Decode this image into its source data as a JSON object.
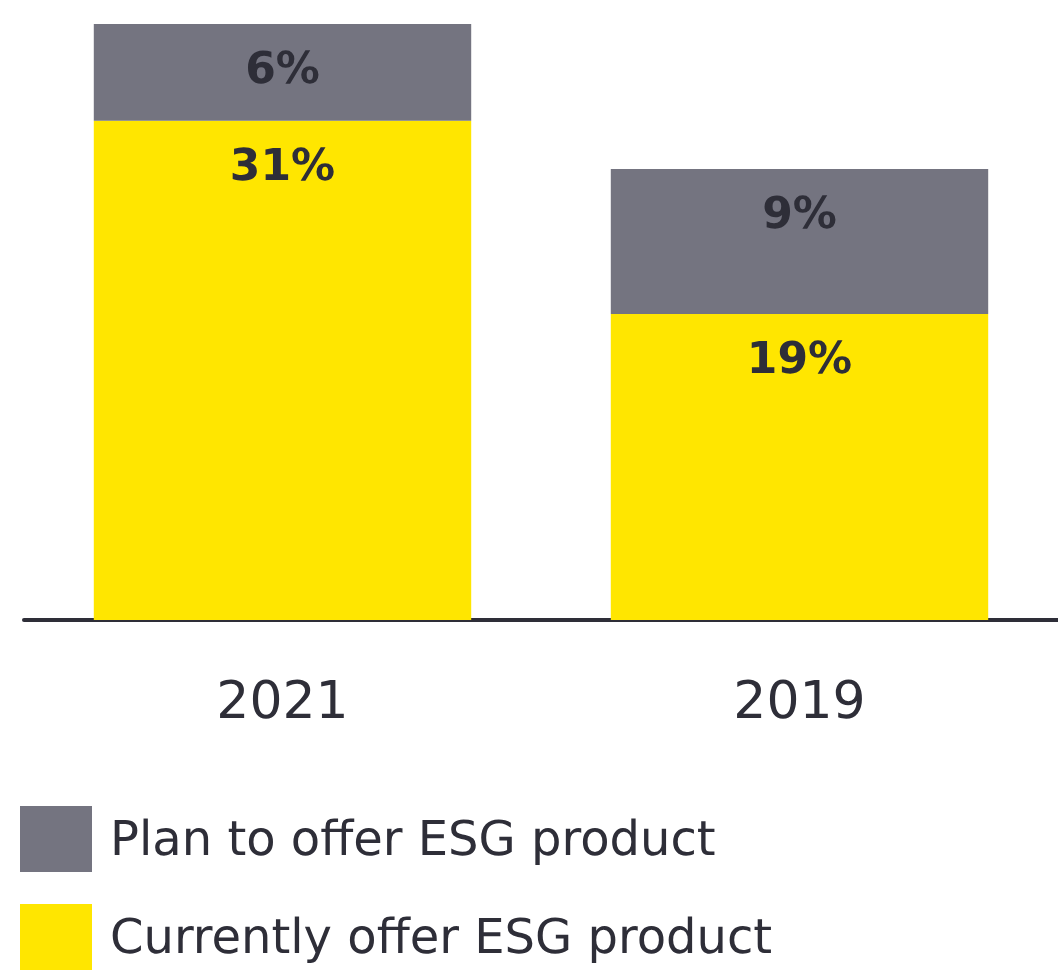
{
  "chart_data": {
    "type": "bar",
    "stacked": true,
    "categories": [
      "2021",
      "2019"
    ],
    "series": [
      {
        "name": "Currently offer ESG product",
        "color": "#ffe600",
        "values": [
          31,
          19
        ],
        "value_labels": [
          "31%",
          "19%"
        ]
      },
      {
        "name": "Plan to offer ESG product",
        "color": "#747480",
        "values": [
          6,
          9
        ],
        "value_labels": [
          "6%",
          "9%"
        ]
      }
    ],
    "legend": "bottom left",
    "grid": false
  }
}
